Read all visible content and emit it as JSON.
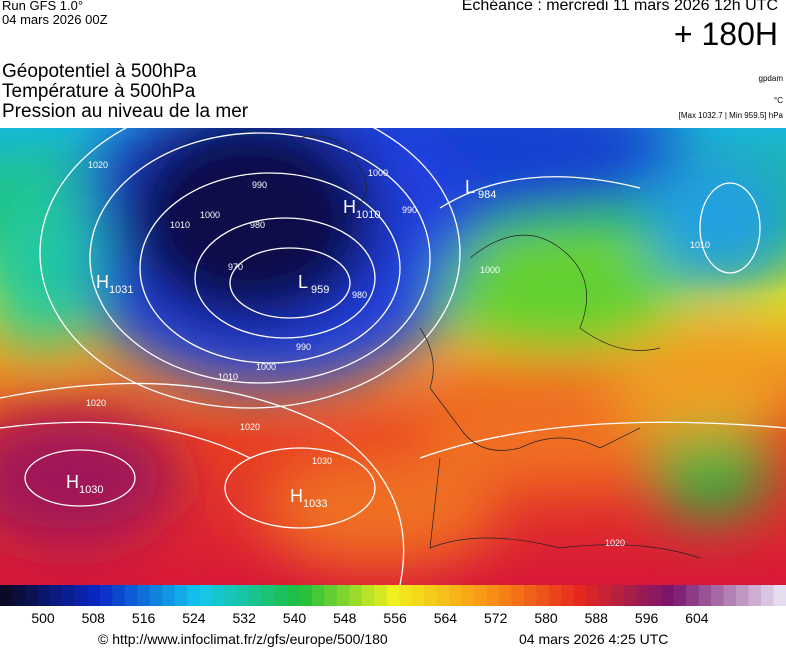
{
  "header": {
    "run": "Run GFS 1.0°",
    "run_date": "04 mars 2026 00Z",
    "echeance": "Echéance : mercredi 11 mars 2026 12h UTC",
    "lead": "+ 180H"
  },
  "titles": [
    "Géopotentiel à 500hPa",
    "Température à 500hPa",
    "Pression au niveau de la mer"
  ],
  "units": {
    "geopotential": "gpdam",
    "temperature": "°C",
    "pressure": "[Max 1032.7 | Min 959.5] hPa"
  },
  "centers": [
    {
      "letter": "H",
      "value": "1031"
    },
    {
      "letter": "L",
      "value": "959"
    },
    {
      "letter": "H",
      "value": "1010"
    },
    {
      "letter": "L",
      "value": "984"
    },
    {
      "letter": "H",
      "value": "1030"
    },
    {
      "letter": "H",
      "value": "1033"
    }
  ],
  "isobar_labels": [
    "1020",
    "1010",
    "1000",
    "990",
    "980",
    "970",
    "1000",
    "990",
    "980",
    "990",
    "1000",
    "1010",
    "1020",
    "1020",
    "1030",
    "1020",
    "1000",
    "1010"
  ],
  "scale": {
    "labels": [
      "500",
      "508",
      "516",
      "524",
      "532",
      "540",
      "548",
      "556",
      "564",
      "572",
      "580",
      "588",
      "596",
      "604"
    ]
  },
  "footer": {
    "source": "© http://www.infoclimat.fr/z/gfs/europe/500/180",
    "date": "04 mars 2026  4:25 UTC"
  }
}
